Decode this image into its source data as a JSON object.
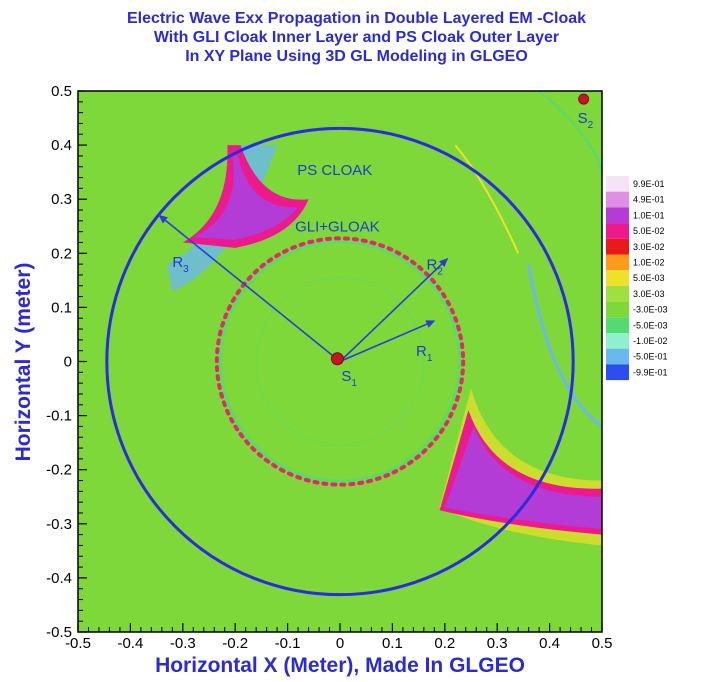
{
  "chart_data": {
    "type": "heatmap",
    "title_lines": [
      "Electric Wave Exx Propagation in Double Layered EM -Cloak",
      "With GLI Cloak Inner Layer and  PS Cloak Outer Layer",
      "In XY Plane Using 3D GL Modeling in GLGEO"
    ],
    "xlabel": "Horizontal X (Meter), Made In GLGEO",
    "ylabel": "Horizontal Y (meter)",
    "xlim": [
      -0.5,
      0.5
    ],
    "ylim": [
      -0.5,
      0.5
    ],
    "x_ticks": [
      "-0.5",
      "-0.4",
      "-0.3",
      "-0.2",
      "-0.1",
      "0",
      "0.1",
      "0.2",
      "0.3",
      "0.4",
      "0.5"
    ],
    "y_ticks": [
      "0.5",
      "0.4",
      "0.3",
      "0.2",
      "0.1",
      "0",
      "-0.1",
      "-0.2",
      "-0.3",
      "-0.4",
      "-0.5"
    ],
    "x_tick_values": [
      -0.5,
      -0.4,
      -0.3,
      -0.2,
      -0.1,
      0,
      0.1,
      0.2,
      0.3,
      0.4,
      0.5
    ],
    "y_tick_values": [
      0.5,
      0.4,
      0.3,
      0.2,
      0.1,
      0,
      -0.1,
      -0.2,
      -0.3,
      -0.4,
      -0.5
    ],
    "background_color": "#7ed83a",
    "legend": {
      "placement": "right",
      "entries": [
        {
          "label": "9.9E-01",
          "color": "#f6e3f6"
        },
        {
          "label": "4.9E-01",
          "color": "#e08ee6"
        },
        {
          "label": "1.0E-01",
          "color": "#b43cd6"
        },
        {
          "label": "5.0E-02",
          "color": "#ec1a8c"
        },
        {
          "label": "3.0E-02",
          "color": "#e81a1a"
        },
        {
          "label": "1.0E-02",
          "color": "#ff9a1a"
        },
        {
          "label": "5.0E-03",
          "color": "#f0e028"
        },
        {
          "label": "3.0E-03",
          "color": "#9ee040"
        },
        {
          "label": "-3.0E-03",
          "color": "#7ed83a"
        },
        {
          "label": "-5.0E-03",
          "color": "#52dc70"
        },
        {
          "label": "-1.0E-02",
          "color": "#8ef0cc"
        },
        {
          "label": "-5.0E-01",
          "color": "#6ab8f0"
        },
        {
          "label": "-9.9E-01",
          "color": "#2a4ef0"
        }
      ]
    },
    "circles": [
      {
        "name": "outer-cloak-boundary",
        "cx": 0,
        "cy": 0,
        "r": 0.445,
        "color": "#2b2be0"
      },
      {
        "name": "inner-cloak-boundary",
        "cx": 0,
        "cy": 0,
        "r": 0.235,
        "color": "#e02a6a",
        "style": "dotted"
      }
    ],
    "sources": [
      {
        "label": "S",
        "sub": "1",
        "x": -0.005,
        "y": 0.005
      },
      {
        "label": "S",
        "sub": "2",
        "x": 0.465,
        "y": 0.485
      }
    ],
    "radius_arrows": [
      {
        "label": "R",
        "sub": "1",
        "x2": 0.18,
        "y2": 0.075
      },
      {
        "label": "R",
        "sub": "2",
        "x2": 0.205,
        "y2": 0.19
      },
      {
        "label": "R",
        "sub": "3",
        "x2": -0.345,
        "y2": 0.27
      }
    ],
    "annotations": [
      {
        "text": "PS CLOAK",
        "x": -0.01,
        "y": 0.345
      },
      {
        "text": "GLI+GLOAK",
        "x": -0.005,
        "y": 0.24
      }
    ]
  }
}
